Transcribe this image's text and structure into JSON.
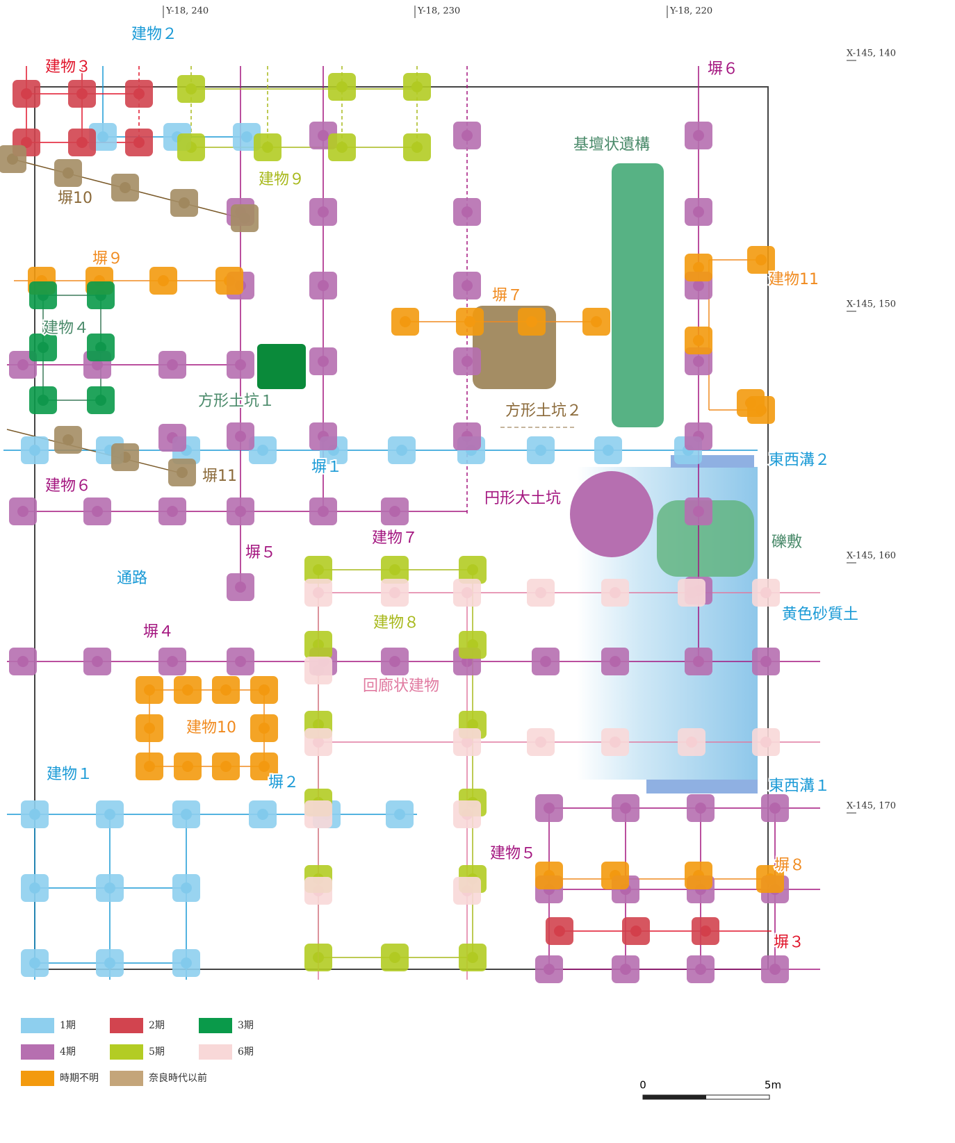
{
  "grid_labels": {
    "y": [
      "Y-18, 240",
      "Y-18, 230",
      "Y-18, 220"
    ],
    "x": [
      "X-145, 140",
      "X-145, 150",
      "X-145, 160",
      "X-145, 170"
    ]
  },
  "features": [
    {
      "text": "建物２",
      "color": "#1a9ad6"
    },
    {
      "text": "東西溝２",
      "color": "#1a9ad6"
    },
    {
      "text": "塀１",
      "color": "#1a9ad6"
    },
    {
      "text": "通路",
      "color": "#1a9ad6"
    },
    {
      "text": "黄色砂質土",
      "color": "#1a9ad6"
    },
    {
      "text": "建物１",
      "color": "#1a9ad6"
    },
    {
      "text": "塀２",
      "color": "#1a9ad6"
    },
    {
      "text": "東西溝１",
      "color": "#1a9ad6"
    },
    {
      "text": "建物３",
      "color": "#e0142a"
    },
    {
      "text": "塀３",
      "color": "#e0142a"
    },
    {
      "text": "塀６",
      "color": "#a3157f"
    },
    {
      "text": "建物６",
      "color": "#a3157f"
    },
    {
      "text": "円形大土坑",
      "color": "#a3157f"
    },
    {
      "text": "塀５",
      "color": "#a3157f"
    },
    {
      "text": "建物７",
      "color": "#a3157f"
    },
    {
      "text": "塀４",
      "color": "#a3157f"
    },
    {
      "text": "建物５",
      "color": "#a3157f"
    },
    {
      "text": "建物９",
      "color": "#a7b81a"
    },
    {
      "text": "建物８",
      "color": "#a7b81a"
    },
    {
      "text": "塀10",
      "color": "#8b6a3a"
    },
    {
      "text": "塀11",
      "color": "#8b6a3a"
    },
    {
      "text": "方形土坑２",
      "color": "#8b6a3a"
    },
    {
      "text": "塀９",
      "color": "#f08a1e"
    },
    {
      "text": "塀７",
      "color": "#f08a1e"
    },
    {
      "text": "建物11",
      "color": "#f08a1e"
    },
    {
      "text": "建物10",
      "color": "#f08a1e"
    },
    {
      "text": "塀８",
      "color": "#f08a1e"
    },
    {
      "text": "基壇状遺構",
      "color": "#4a8a6a"
    },
    {
      "text": "建物４",
      "color": "#4a8a6a"
    },
    {
      "text": "方形土坑１",
      "color": "#4a8a6a"
    },
    {
      "text": "礫敷",
      "color": "#4a8a6a"
    },
    {
      "text": "回廊状建物",
      "color": "#e07aa0"
    }
  ],
  "legend": [
    {
      "label": "1期",
      "color": "#8ecfee"
    },
    {
      "label": "2期",
      "color": "#d2444f"
    },
    {
      "label": "3期",
      "color": "#0a9a4a"
    },
    {
      "label": "4期",
      "color": "#b66fb0"
    },
    {
      "label": "5期",
      "color": "#b3cc24"
    },
    {
      "label": "6期",
      "color": "#f8d8d8"
    },
    {
      "label": "時期不明",
      "color": "#f39a0e"
    },
    {
      "label": "奈良時代以前",
      "color": "#c4a57a"
    }
  ],
  "scale": {
    "start": "0",
    "end": "5m"
  }
}
